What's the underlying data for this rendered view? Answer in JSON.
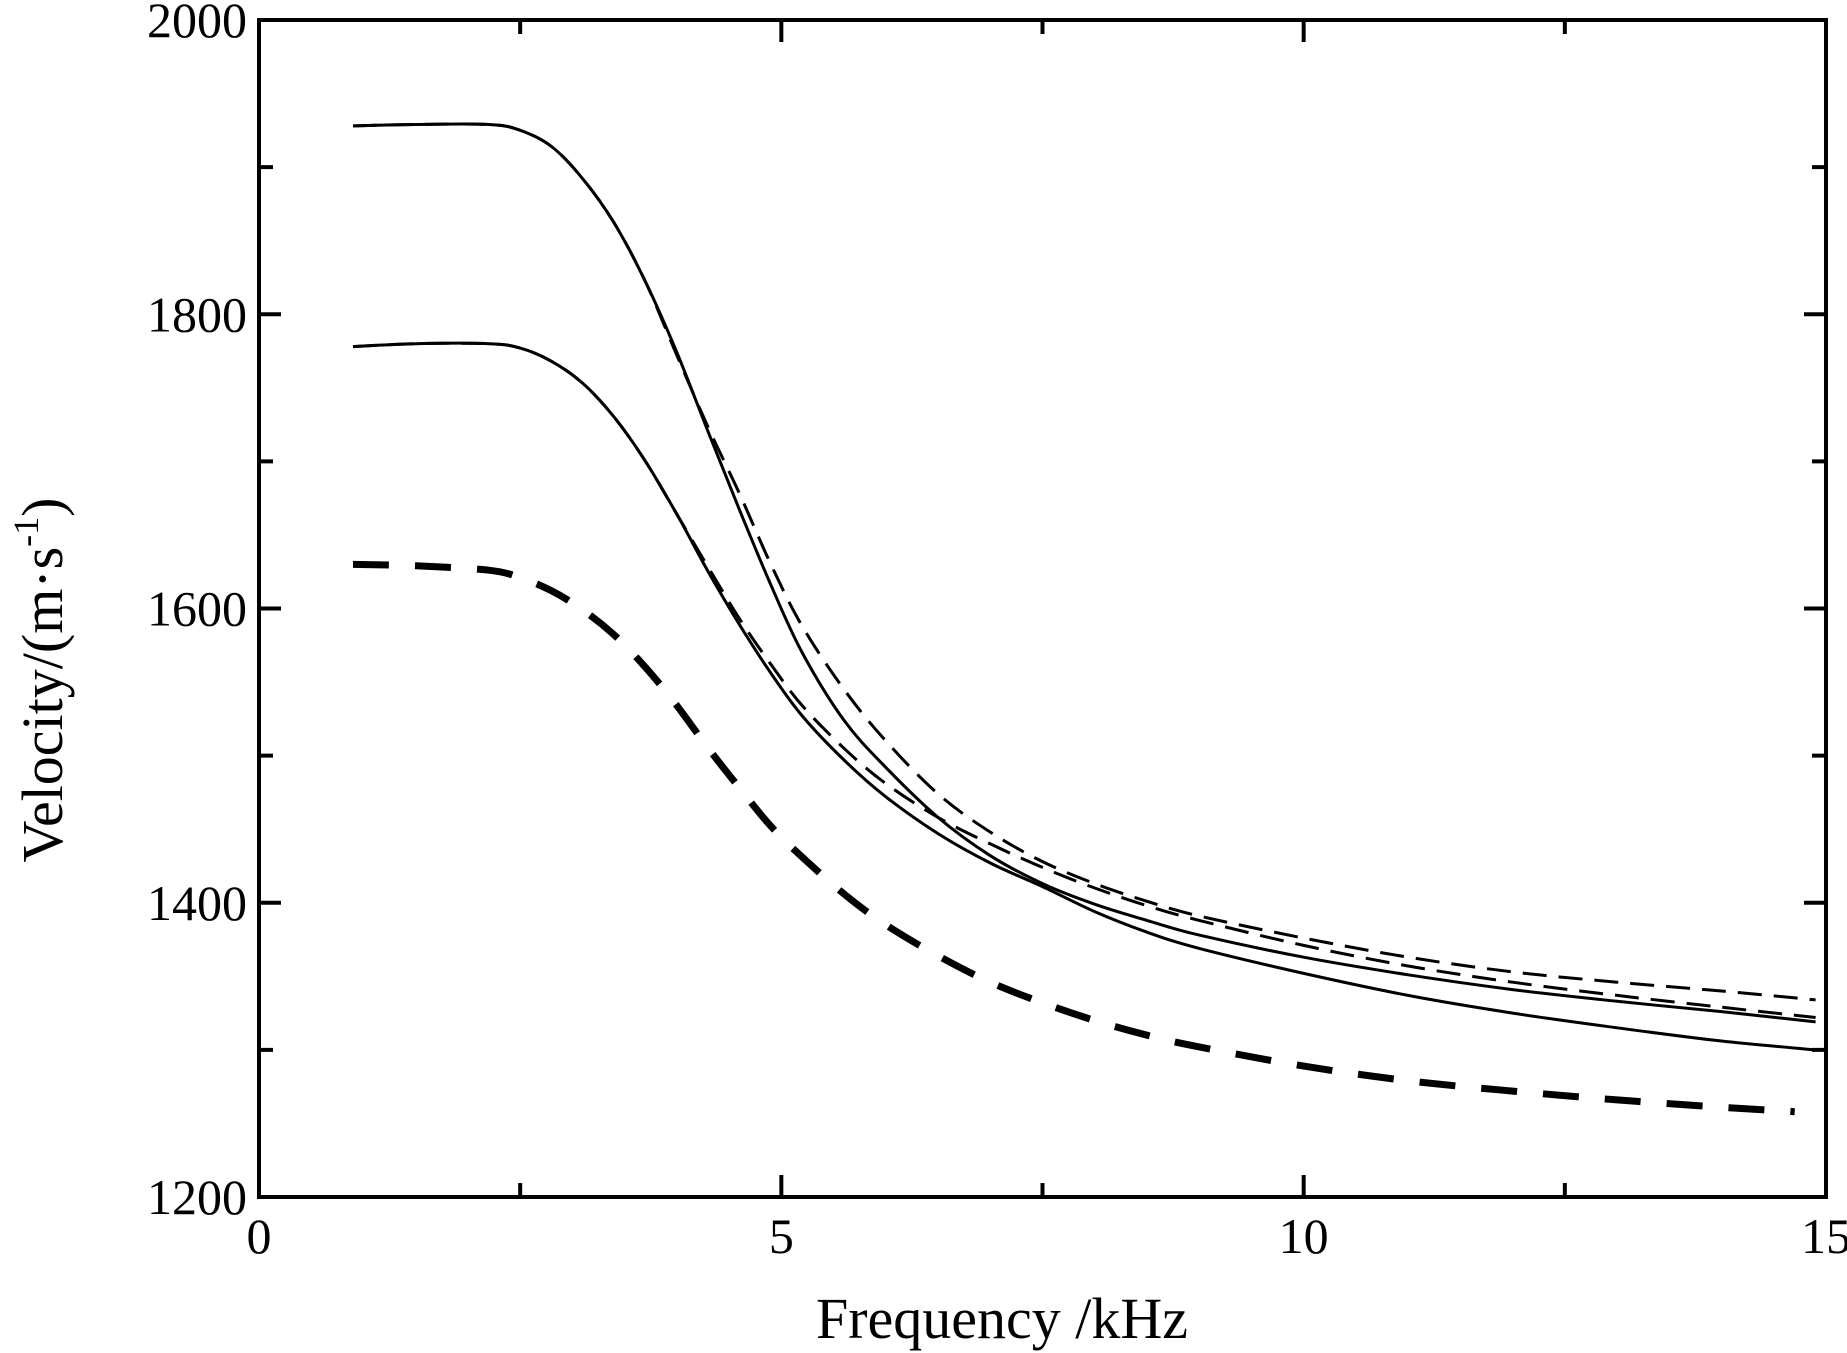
{
  "chart_data": {
    "type": "line",
    "title": "",
    "xlabel": "Frequency /kHz",
    "ylabel_main": "Velocity/(m·s",
    "ylabel_sup": "-1",
    "ylabel_close": ")",
    "xlim": [
      0,
      15
    ],
    "ylim": [
      1200,
      2000
    ],
    "x_ticks": [
      0,
      5,
      10,
      15
    ],
    "x_tick_labels": [
      "0",
      "5",
      "10",
      "15"
    ],
    "x_minor_ticks": [
      2.5,
      7.5,
      12.5
    ],
    "y_ticks": [
      1200,
      1400,
      1600,
      1800,
      2000
    ],
    "y_tick_labels": [
      "1200",
      "1400",
      "1600",
      "1800",
      "2000"
    ],
    "y_minor_ticks": [
      1300,
      1500,
      1700,
      1900
    ],
    "grid": false,
    "legend": "none",
    "colors": {
      "line": "#000000",
      "axis": "#000000"
    },
    "series": [
      {
        "style": "solid",
        "x": [
          0.9,
          1.5,
          2.2,
          2.5,
          2.8,
          3.1,
          3.4,
          3.7,
          4.0,
          4.3,
          4.6,
          4.9,
          5.2,
          5.6,
          6.0,
          6.5,
          7.0,
          7.5,
          8.0,
          8.5,
          9.0,
          10.0,
          11.0,
          12.0,
          13.0,
          14.0,
          14.9
        ],
        "values": [
          1928,
          1929,
          1929,
          1925,
          1914,
          1892,
          1862,
          1822,
          1774,
          1720,
          1667,
          1616,
          1570,
          1524,
          1492,
          1458,
          1432,
          1413,
          1399,
          1388,
          1378,
          1363,
          1351,
          1341,
          1333,
          1326,
          1319
        ]
      },
      {
        "style": "dashed",
        "x": [
          0.9,
          1.5,
          2.2,
          2.5,
          2.8,
          3.1,
          3.4,
          3.7,
          4.0,
          4.3,
          4.6,
          4.9,
          5.2,
          5.6,
          6.0,
          6.5,
          7.0,
          7.5,
          8.0,
          8.5,
          9.0,
          10.0,
          11.0,
          12.0,
          13.0,
          14.0,
          14.9
        ],
        "values": [
          1928,
          1929,
          1929,
          1925,
          1914,
          1892,
          1862,
          1822,
          1772,
          1723,
          1678,
          1630,
          1588,
          1545,
          1510,
          1474,
          1448,
          1428,
          1413,
          1401,
          1391,
          1376,
          1363,
          1353,
          1346,
          1340,
          1334
        ]
      },
      {
        "style": "solid",
        "x": [
          0.9,
          1.5,
          2.2,
          2.5,
          2.8,
          3.1,
          3.4,
          3.7,
          4.0,
          4.3,
          4.6,
          4.9,
          5.2,
          5.6,
          6.0,
          6.5,
          7.0,
          7.5,
          8.0,
          8.5,
          9.0,
          10.0,
          11.0,
          12.0,
          13.0,
          14.0,
          14.9
        ],
        "values": [
          1778,
          1780,
          1780,
          1777,
          1768,
          1753,
          1730,
          1700,
          1664,
          1625,
          1589,
          1556,
          1527,
          1497,
          1472,
          1447,
          1427,
          1411,
          1394,
          1380,
          1369,
          1352,
          1337,
          1325,
          1315,
          1306,
          1300
        ]
      },
      {
        "style": "dashed",
        "x": [
          0.9,
          1.5,
          2.2,
          2.5,
          2.8,
          3.1,
          3.4,
          3.7,
          4.0,
          4.3,
          4.6,
          4.9,
          5.2,
          5.6,
          6.0,
          6.5,
          7.0,
          7.5,
          8.0,
          8.5,
          9.0,
          10.0,
          11.0,
          12.0,
          13.0,
          14.0,
          14.9
        ],
        "values": [
          1778,
          1780,
          1780,
          1777,
          1768,
          1753,
          1730,
          1700,
          1664,
          1628,
          1593,
          1562,
          1534,
          1505,
          1481,
          1458,
          1440,
          1424,
          1410,
          1398,
          1388,
          1371,
          1357,
          1346,
          1337,
          1329,
          1322
        ]
      },
      {
        "style": "dashed-heavy",
        "x": [
          0.9,
          1.5,
          2.2,
          2.5,
          2.8,
          3.1,
          3.4,
          3.7,
          4.0,
          4.3,
          4.6,
          4.9,
          5.2,
          5.6,
          6.0,
          6.5,
          7.0,
          7.5,
          8.0,
          8.5,
          9.0,
          10.0,
          11.0,
          12.0,
          13.0,
          14.0,
          14.7
        ],
        "values": [
          1630,
          1629,
          1626,
          1621,
          1612,
          1599,
          1582,
          1560,
          1534,
          1505,
          1478,
          1452,
          1431,
          1406,
          1385,
          1364,
          1346,
          1332,
          1320,
          1310,
          1302,
          1289,
          1279,
          1272,
          1266,
          1261,
          1258
        ]
      }
    ]
  }
}
